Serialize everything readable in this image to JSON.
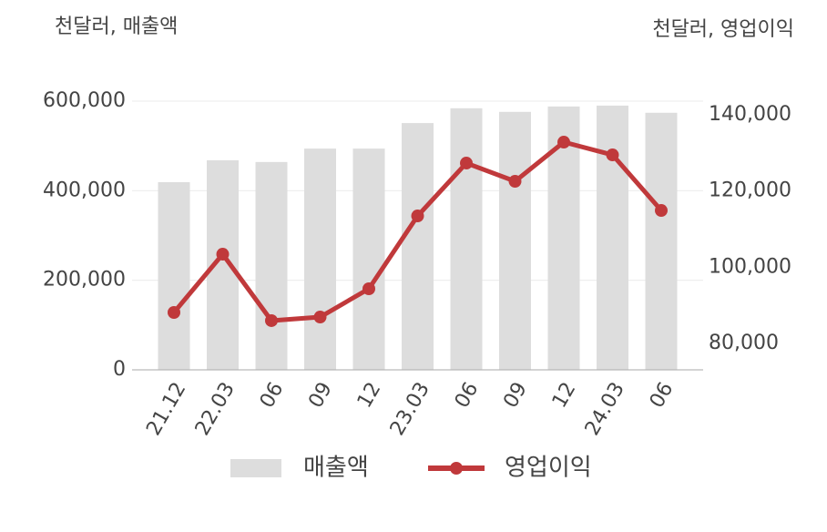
{
  "chart_data": {
    "type": "bar-line",
    "y_axis_title": "천달러, 매출액",
    "y2_axis_title": "천달러, 영업이익",
    "categories": [
      "21.12",
      "22.03",
      "06",
      "09",
      "12",
      "23.03",
      "06",
      "09",
      "12",
      "24.03",
      "06"
    ],
    "series": [
      {
        "name": "매출액",
        "type": "bar",
        "color": "#dddddd",
        "values": [
          419000,
          468000,
          464000,
          494000,
          494000,
          551000,
          584000,
          576000,
          588000,
          590000,
          574000
        ]
      },
      {
        "name": "영업이익",
        "type": "line",
        "axis": "y2",
        "color": "#c0393b",
        "values": [
          88130,
          103420,
          85980,
          86930,
          94340,
          113460,
          127320,
          122540,
          132820,
          129470,
          114890
        ]
      }
    ],
    "ylim": [
      0,
      600000
    ],
    "yticks": [
      0,
      {
        "value": 200000,
        "label": "200,000"
      },
      {
        "value": 400000,
        "label": "400,000"
      },
      {
        "value": 600000,
        "label": "600,000"
      }
    ],
    "y2lim": [
      73070,
      143580
    ],
    "y2ticks": [
      {
        "value": 80000,
        "label": "80,000"
      },
      {
        "value": 100000,
        "label": "100,000"
      },
      {
        "value": 120000,
        "label": "120,000"
      },
      {
        "value": 140000,
        "label": "140,000"
      }
    ],
    "grid": true
  }
}
